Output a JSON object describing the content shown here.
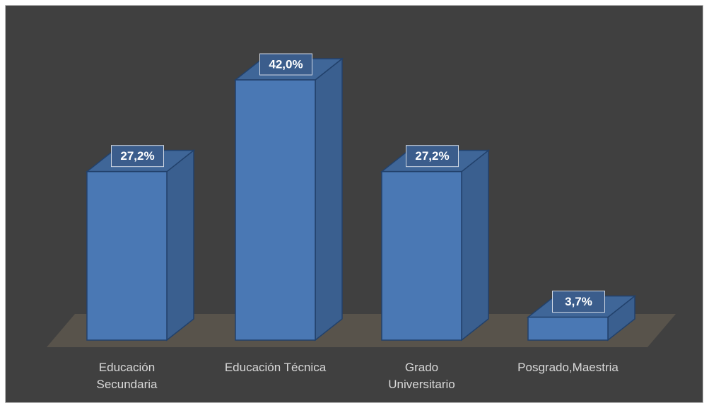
{
  "chart_data": {
    "type": "bar3d",
    "categories": [
      "Educación\nSecundaria",
      "Educación Técnica",
      "Grado\nUniversitario",
      "Posgrado,Maestria"
    ],
    "values": [
      27.2,
      42.0,
      27.2,
      3.7
    ],
    "value_labels": [
      "27,2%",
      "42,0%",
      "27,2%",
      "3,7%"
    ],
    "color": "#4a78b4"
  }
}
